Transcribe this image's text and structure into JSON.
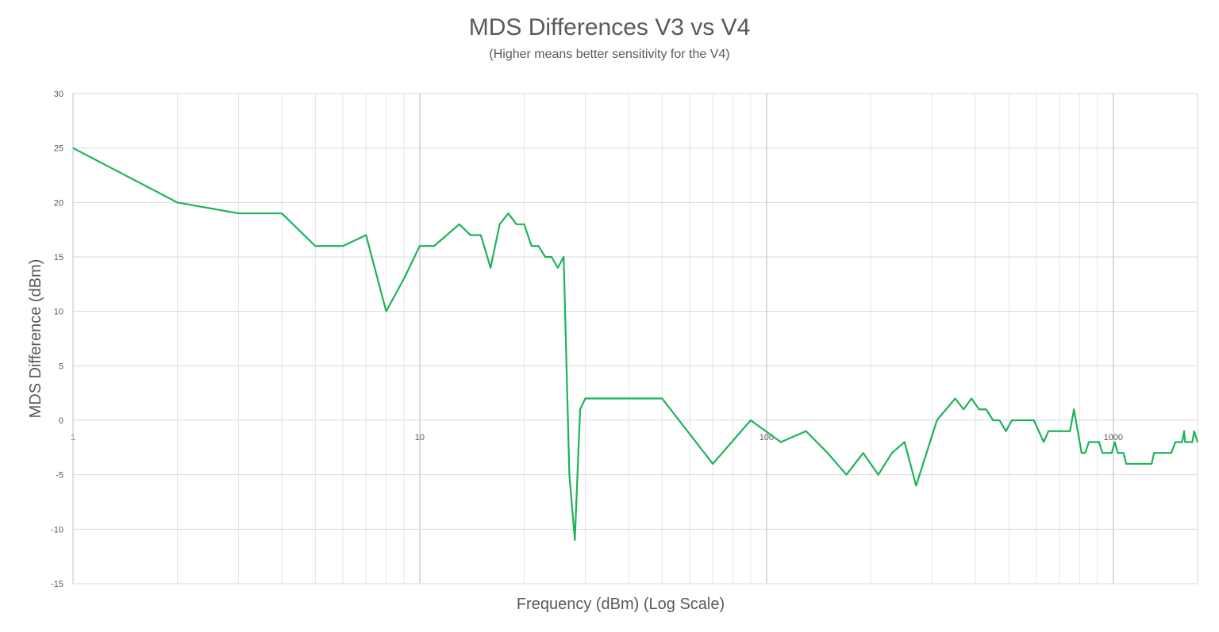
{
  "chart_data": {
    "type": "line",
    "title": "MDS Differences V3 vs V4",
    "subtitle": "(Higher means better sensitivity for the V4)",
    "x_label": "Frequency (dBm) (Log Scale)",
    "y_label": "MDS Difference (dBm)",
    "x_scale": "log",
    "grid": true,
    "minor_grid": true,
    "xlim": [
      1,
      1750
    ],
    "xticks": [
      1,
      10,
      100,
      1000
    ],
    "ylim": [
      -15,
      30
    ],
    "yticks": [
      -15,
      -10,
      -5,
      0,
      5,
      10,
      15,
      20,
      25,
      30
    ],
    "x": [
      1,
      2,
      3,
      4,
      5,
      6,
      7,
      8,
      9,
      10,
      11,
      13,
      14,
      15,
      16,
      17,
      18,
      19,
      20,
      21,
      22,
      23,
      24,
      25,
      26,
      27,
      28,
      29,
      30,
      50,
      70,
      90,
      110,
      130,
      150,
      170,
      190,
      210,
      230,
      250,
      270,
      310,
      350,
      370,
      390,
      410,
      430,
      450,
      470,
      490,
      510,
      590,
      630,
      650,
      750,
      770,
      810,
      830,
      850,
      910,
      930,
      990,
      1010,
      1030,
      1070,
      1090,
      1290,
      1310,
      1470,
      1510,
      1580,
      1600,
      1610,
      1690,
      1710,
      1750
    ],
    "series": [
      {
        "name": "MDS Difference",
        "color": "#1db35a",
        "values": [
          25,
          20,
          19,
          19,
          16,
          16,
          17,
          10,
          13,
          16,
          16,
          18,
          17,
          17,
          14,
          18,
          19,
          18,
          18,
          16,
          16,
          15,
          15,
          14,
          15,
          -5,
          -11,
          1,
          2,
          2,
          -4,
          0,
          -2,
          -1,
          -3,
          -5,
          -3,
          -5,
          -3,
          -2,
          -6,
          0,
          2,
          1,
          2,
          1,
          1,
          0,
          0,
          -1,
          0,
          0,
          -2,
          -1,
          -1,
          1,
          -3,
          -3,
          -2,
          -2,
          -3,
          -3,
          -2,
          -3,
          -3,
          -4,
          -4,
          -3,
          -3,
          -2,
          -2,
          -1,
          -2,
          -2,
          -1,
          -2
        ]
      }
    ]
  }
}
